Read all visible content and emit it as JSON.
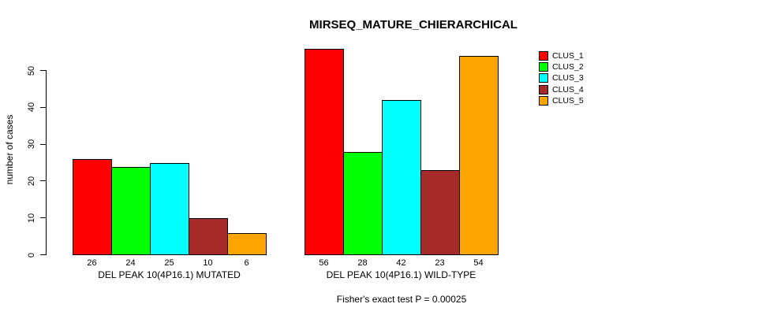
{
  "chart_data": {
    "type": "bar",
    "title": "MIRSEQ_MATURE_CHIERARCHICAL",
    "ylabel": "number of cases",
    "xlabel": "",
    "annotation": "Fisher's exact test P = 0.00025",
    "ylim": [
      0,
      56
    ],
    "yticks": [
      0,
      10,
      20,
      30,
      40,
      50
    ],
    "grid": false,
    "legend_position": "top-right",
    "bar_value_labels_shown": true,
    "categories": [
      "DEL PEAK 10(4P16.1) MUTATED",
      "DEL PEAK 10(4P16.1) WILD-TYPE"
    ],
    "series": [
      {
        "name": "CLUS_1",
        "color": "#FF0000",
        "values": [
          26,
          56
        ]
      },
      {
        "name": "CLUS_2",
        "color": "#00FF00",
        "values": [
          24,
          28
        ]
      },
      {
        "name": "CLUS_3",
        "color": "#00FFFF",
        "values": [
          25,
          42
        ]
      },
      {
        "name": "CLUS_4",
        "color": "#A52A2A",
        "values": [
          10,
          23
        ]
      },
      {
        "name": "CLUS_5",
        "color": "#FFA500",
        "values": [
          6,
          54
        ]
      }
    ]
  }
}
